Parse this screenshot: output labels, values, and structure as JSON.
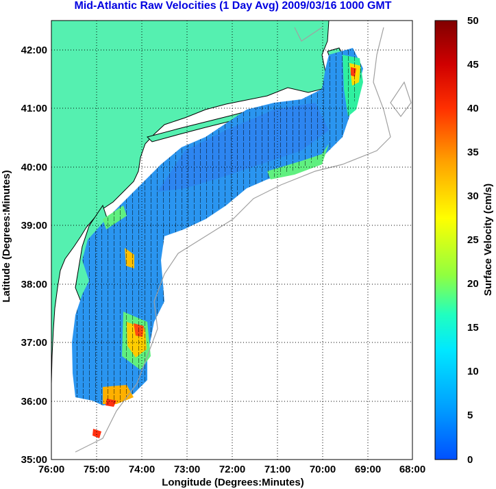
{
  "title": "Mid-Atlantic Raw Velocities (1 Day Avg) 2009/03/16 1000 GMT",
  "xlabel": "Longitude (Degrees:Minutes)",
  "ylabel": "Latitude (Degrees:Minutes)",
  "colorbar_label": "Surface Velocity (cm/s)",
  "x_ticks": [
    "76:00",
    "75:00",
    "74:00",
    "73:00",
    "72:00",
    "71:00",
    "70:00",
    "69:00",
    "68:00"
  ],
  "y_ticks": [
    "42:00",
    "41:00",
    "40:00",
    "39:00",
    "38:00",
    "37:00",
    "36:00",
    "35:00"
  ],
  "colorbar_ticks": [
    "50",
    "45",
    "40",
    "35",
    "30",
    "25",
    "20",
    "15",
    "10",
    "5",
    "0"
  ],
  "colors": {
    "land": "#55f0b0",
    "ocean": "#ffffff",
    "coast": "#000000",
    "bathymetry": "#a0a0a0",
    "title": "#0000e0",
    "vector": "#000000",
    "colormap": [
      "#0050ff",
      "#00a0ff",
      "#00ffff",
      "#40ff80",
      "#c0ff00",
      "#ffff00",
      "#ffa000",
      "#ff4000",
      "#e00000",
      "#800000"
    ]
  },
  "chart_data": {
    "type": "heatmap",
    "title": "Mid-Atlantic Raw Velocities (1 Day Avg) 2009/03/16 1000 GMT",
    "xlabel": "Longitude (Degrees:Minutes)",
    "ylabel": "Latitude (Degrees:Minutes)",
    "xlim": [
      -76,
      -68
    ],
    "ylim": [
      35,
      42.5
    ],
    "colorbar": {
      "label": "Surface Velocity (cm/s)",
      "range": [
        0,
        50
      ]
    },
    "grid": true,
    "regions": [
      {
        "lon": [
          -69.8,
          -69.2
        ],
        "lat": [
          41.0,
          42.1
        ],
        "speed": 22
      },
      {
        "lon": [
          -73.5,
          -69.8
        ],
        "lat": [
          39.6,
          41.2
        ],
        "speed": 6
      },
      {
        "lon": [
          -74.7,
          -72.5
        ],
        "lat": [
          38.6,
          39.9
        ],
        "speed": 7
      },
      {
        "lon": [
          -75.6,
          -74.0
        ],
        "lat": [
          36.2,
          38.5
        ],
        "speed": 10
      },
      {
        "lon": [
          -74.6,
          -73.8
        ],
        "lat": [
          36.3,
          37.4
        ],
        "speed": 24
      },
      {
        "lon": [
          -75.0,
          -74.6
        ],
        "lat": [
          35.9,
          36.3
        ],
        "speed": 30
      }
    ]
  }
}
